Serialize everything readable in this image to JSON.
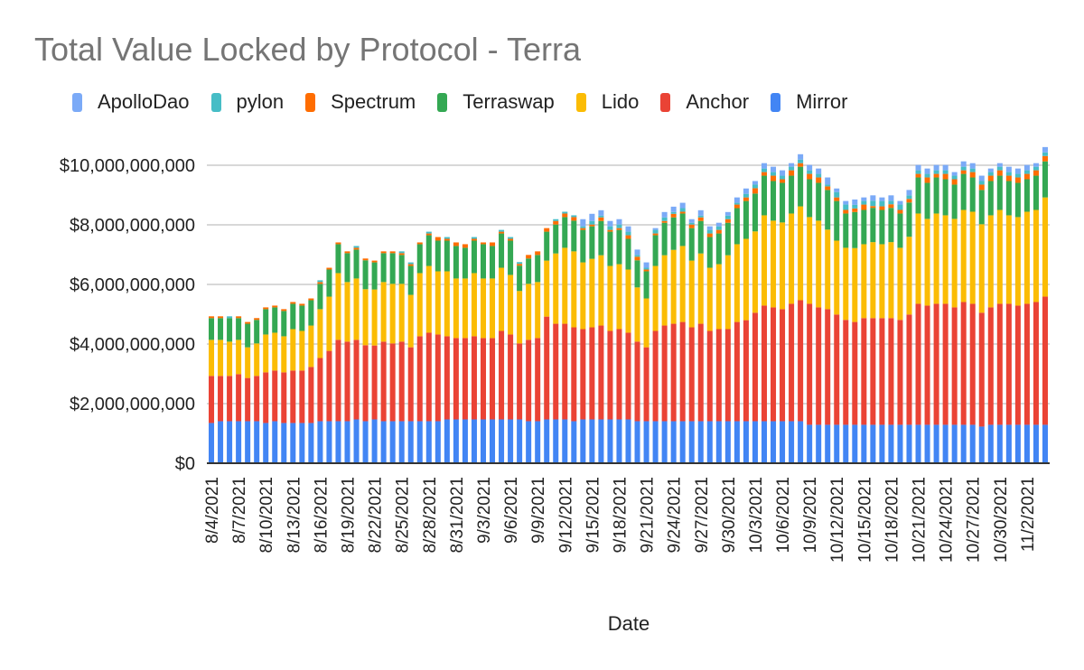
{
  "chart_data": {
    "type": "bar",
    "stacked": true,
    "title": "Total Value Locked by Protocol - Terra",
    "xlabel": "Date",
    "ylabel": "",
    "units": "USD billions",
    "ylim": [
      0,
      10.6
    ],
    "yticks": [
      0,
      2,
      4,
      6,
      8,
      10
    ],
    "ytick_labels": [
      "$0",
      "$2,000,000,000",
      "$4,000,000,000",
      "$6,000,000,000",
      "$8,000,000,000",
      "$10,000,000,000"
    ],
    "grid": true,
    "legend_position": "top",
    "legend_order": [
      "ApolloDao",
      "pylon",
      "Spectrum",
      "Terraswap",
      "Lido",
      "Anchor",
      "Mirror"
    ],
    "xtick_every": 3,
    "categories": [
      "8/4/2021",
      "8/5/2021",
      "8/6/2021",
      "8/7/2021",
      "8/8/2021",
      "8/9/2021",
      "8/10/2021",
      "8/11/2021",
      "8/12/2021",
      "8/13/2021",
      "8/14/2021",
      "8/15/2021",
      "8/16/2021",
      "8/17/2021",
      "8/18/2021",
      "8/19/2021",
      "8/20/2021",
      "8/21/2021",
      "8/22/2021",
      "8/23/2021",
      "8/24/2021",
      "8/25/2021",
      "8/26/2021",
      "8/27/2021",
      "8/28/2021",
      "8/29/2021",
      "8/30/2021",
      "8/31/2021",
      "9/1/2021",
      "9/2/2021",
      "9/3/2021",
      "9/4/2021",
      "9/5/2021",
      "9/6/2021",
      "9/7/2021",
      "9/8/2021",
      "9/9/2021",
      "9/10/2021",
      "9/11/2021",
      "9/12/2021",
      "9/13/2021",
      "9/14/2021",
      "9/15/2021",
      "9/16/2021",
      "9/17/2021",
      "9/18/2021",
      "9/19/2021",
      "9/20/2021",
      "9/21/2021",
      "9/22/2021",
      "9/23/2021",
      "9/24/2021",
      "9/25/2021",
      "9/26/2021",
      "9/27/2021",
      "9/28/2021",
      "9/29/2021",
      "9/30/2021",
      "10/1/2021",
      "10/2/2021",
      "10/3/2021",
      "10/4/2021",
      "10/5/2021",
      "10/6/2021",
      "10/7/2021",
      "10/8/2021",
      "10/9/2021",
      "10/10/2021",
      "10/11/2021",
      "10/12/2021",
      "10/13/2021",
      "10/14/2021",
      "10/15/2021",
      "10/16/2021",
      "10/17/2021",
      "10/18/2021",
      "10/19/2021",
      "10/20/2021",
      "10/21/2021",
      "10/22/2021",
      "10/23/2021",
      "10/24/2021",
      "10/25/2021",
      "10/26/2021",
      "10/27/2021",
      "10/28/2021",
      "10/29/2021",
      "10/30/2021",
      "10/31/2021",
      "11/1/2021",
      "11/2/2021",
      "11/3/2021",
      "11/4/2021"
    ],
    "series": [
      {
        "name": "Mirror",
        "color": "#4285f4",
        "values": [
          1.35,
          1.41,
          1.41,
          1.41,
          1.41,
          1.41,
          1.35,
          1.41,
          1.35,
          1.35,
          1.35,
          1.35,
          1.41,
          1.41,
          1.41,
          1.41,
          1.47,
          1.41,
          1.47,
          1.41,
          1.41,
          1.41,
          1.41,
          1.41,
          1.41,
          1.41,
          1.47,
          1.47,
          1.47,
          1.47,
          1.47,
          1.47,
          1.47,
          1.47,
          1.47,
          1.41,
          1.41,
          1.47,
          1.47,
          1.47,
          1.41,
          1.47,
          1.47,
          1.47,
          1.47,
          1.47,
          1.47,
          1.41,
          1.41,
          1.41,
          1.41,
          1.41,
          1.41,
          1.41,
          1.41,
          1.41,
          1.41,
          1.41,
          1.41,
          1.41,
          1.41,
          1.41,
          1.41,
          1.41,
          1.41,
          1.41,
          1.29,
          1.29,
          1.29,
          1.29,
          1.29,
          1.29,
          1.29,
          1.29,
          1.29,
          1.29,
          1.29,
          1.29,
          1.29,
          1.29,
          1.29,
          1.29,
          1.29,
          1.29,
          1.29,
          1.23,
          1.29,
          1.29,
          1.29,
          1.29,
          1.29,
          1.29,
          1.29
        ]
      },
      {
        "name": "Anchor",
        "color": "#ea4335",
        "values": [
          1.58,
          1.52,
          1.52,
          1.58,
          1.45,
          1.52,
          1.7,
          1.7,
          1.7,
          1.76,
          1.76,
          1.88,
          2.12,
          2.36,
          2.73,
          2.67,
          2.67,
          2.55,
          2.48,
          2.67,
          2.61,
          2.67,
          2.48,
          2.85,
          2.97,
          2.91,
          2.79,
          2.73,
          2.73,
          2.79,
          2.73,
          2.73,
          2.97,
          2.85,
          2.55,
          2.73,
          2.79,
          3.45,
          3.21,
          3.21,
          3.15,
          3.03,
          3.09,
          3.15,
          2.97,
          3.03,
          2.91,
          2.67,
          2.48,
          3.03,
          3.21,
          3.27,
          3.33,
          3.15,
          3.27,
          3.03,
          3.09,
          3.09,
          3.33,
          3.39,
          3.64,
          3.88,
          3.82,
          3.76,
          3.94,
          4.06,
          4.06,
          3.94,
          3.88,
          3.7,
          3.52,
          3.45,
          3.58,
          3.58,
          3.58,
          3.58,
          3.52,
          3.7,
          4.06,
          4.0,
          4.06,
          4.06,
          3.94,
          4.12,
          4.06,
          3.82,
          3.94,
          4.06,
          4.06,
          4.0,
          4.06,
          4.12,
          4.3
        ]
      },
      {
        "name": "Lido",
        "color": "#fbbc04",
        "values": [
          1.21,
          1.21,
          1.15,
          1.15,
          1.03,
          1.09,
          1.27,
          1.27,
          1.21,
          1.39,
          1.33,
          1.39,
          1.64,
          1.82,
          2.24,
          2.0,
          2.06,
          1.88,
          1.88,
          2.0,
          2.0,
          1.94,
          1.76,
          2.12,
          2.24,
          2.12,
          2.18,
          2.0,
          2.0,
          2.12,
          2.0,
          2.0,
          2.12,
          2.0,
          1.76,
          1.88,
          1.88,
          1.88,
          2.36,
          2.55,
          2.55,
          2.24,
          2.3,
          2.36,
          2.18,
          2.18,
          2.12,
          1.82,
          1.64,
          2.18,
          2.36,
          2.48,
          2.55,
          2.24,
          2.36,
          2.12,
          2.18,
          2.48,
          2.61,
          2.73,
          2.73,
          3.03,
          2.91,
          2.91,
          3.03,
          3.15,
          2.91,
          2.91,
          2.67,
          2.48,
          2.42,
          2.48,
          2.48,
          2.55,
          2.48,
          2.55,
          2.42,
          2.61,
          3.03,
          2.91,
          3.03,
          2.97,
          2.97,
          3.09,
          3.09,
          2.97,
          3.09,
          3.15,
          2.97,
          2.97,
          3.09,
          3.09,
          3.33
        ]
      },
      {
        "name": "Terraswap",
        "color": "#34a853",
        "values": [
          0.73,
          0.73,
          0.79,
          0.73,
          0.79,
          0.79,
          0.85,
          0.85,
          0.85,
          0.85,
          0.85,
          0.85,
          0.85,
          0.91,
          0.97,
          0.97,
          0.97,
          0.97,
          0.91,
          0.97,
          1.03,
          0.97,
          0.97,
          0.97,
          1.03,
          1.03,
          1.03,
          1.09,
          1.03,
          1.09,
          1.15,
          1.09,
          1.15,
          1.15,
          0.85,
          0.85,
          0.91,
          0.97,
          0.97,
          1.03,
          1.03,
          1.09,
          1.09,
          1.15,
          1.15,
          1.15,
          1.03,
          0.91,
          0.91,
          1.03,
          1.09,
          1.09,
          1.09,
          1.09,
          1.09,
          1.03,
          1.03,
          1.09,
          1.21,
          1.27,
          1.27,
          1.33,
          1.33,
          1.33,
          1.27,
          1.33,
          1.27,
          1.27,
          1.33,
          1.33,
          1.15,
          1.21,
          1.15,
          1.15,
          1.15,
          1.15,
          1.15,
          1.15,
          1.21,
          1.21,
          1.21,
          1.21,
          1.15,
          1.21,
          1.15,
          1.15,
          1.15,
          1.15,
          1.15,
          1.15,
          1.09,
          1.15,
          1.21
        ]
      },
      {
        "name": "Spectrum",
        "color": "#ff6d01",
        "values": [
          0.06,
          0.06,
          0,
          0.06,
          0.06,
          0.06,
          0.06,
          0.06,
          0.06,
          0.06,
          0.06,
          0.06,
          0.06,
          0.06,
          0.06,
          0.06,
          0.06,
          0.06,
          0.06,
          0.06,
          0.06,
          0.06,
          0.06,
          0.06,
          0.06,
          0.12,
          0.06,
          0.12,
          0.12,
          0.06,
          0.06,
          0.12,
          0.06,
          0.06,
          0.06,
          0.12,
          0.12,
          0.12,
          0.12,
          0.12,
          0.12,
          0.06,
          0.06,
          0.12,
          0.06,
          0.06,
          0.12,
          0.12,
          0.06,
          0.06,
          0.06,
          0.12,
          0.06,
          0.12,
          0.12,
          0.12,
          0.12,
          0.12,
          0.12,
          0.12,
          0.18,
          0.12,
          0.18,
          0.12,
          0.18,
          0.12,
          0.18,
          0.18,
          0.12,
          0.12,
          0.12,
          0.12,
          0.18,
          0.06,
          0.12,
          0.12,
          0.12,
          0.12,
          0.12,
          0.18,
          0.12,
          0.18,
          0.18,
          0.12,
          0.18,
          0.18,
          0.18,
          0.18,
          0.18,
          0.18,
          0.18,
          0.18,
          0.18
        ]
      },
      {
        "name": "pylon",
        "color": "#46bdc6",
        "values": [
          0,
          0,
          0.06,
          0,
          0,
          0,
          0,
          0,
          0,
          0,
          0,
          0,
          0.06,
          0,
          0,
          0,
          0.06,
          0,
          0,
          0,
          0,
          0.06,
          0.06,
          0,
          0.06,
          0,
          0.06,
          0,
          0,
          0.06,
          0,
          0,
          0.06,
          0.06,
          0.06,
          0,
          0,
          0,
          0.06,
          0.06,
          0.06,
          0.06,
          0.12,
          0.06,
          0.12,
          0.12,
          0.12,
          0.06,
          0.06,
          0.12,
          0.12,
          0.06,
          0.12,
          0.06,
          0.06,
          0.12,
          0.12,
          0.12,
          0.06,
          0.12,
          0.12,
          0.12,
          0.12,
          0.12,
          0.12,
          0.12,
          0.12,
          0.12,
          0.06,
          0.18,
          0.18,
          0.12,
          0.12,
          0.18,
          0.18,
          0.12,
          0.18,
          0.12,
          0.12,
          0.12,
          0.12,
          0.12,
          0.12,
          0.12,
          0.12,
          0.12,
          0.12,
          0.12,
          0.12,
          0.12,
          0.12,
          0.12,
          0.12
        ]
      },
      {
        "name": "ApolloDao",
        "color": "#7baaf7",
        "values": [
          0,
          0,
          0,
          0,
          0,
          0,
          0,
          0,
          0,
          0,
          0,
          0,
          0,
          0,
          0,
          0,
          0,
          0,
          0,
          0,
          0,
          0,
          0,
          0,
          0,
          0,
          0,
          0,
          0,
          0,
          0,
          0,
          0,
          0,
          0,
          0,
          0,
          0,
          0,
          0,
          0,
          0.24,
          0.24,
          0.18,
          0.18,
          0.18,
          0.18,
          0.18,
          0.18,
          0.06,
          0.18,
          0.18,
          0.18,
          0.12,
          0.18,
          0.12,
          0.12,
          0.12,
          0.18,
          0.18,
          0.12,
          0.18,
          0.18,
          0.18,
          0.12,
          0.18,
          0.18,
          0.18,
          0.24,
          0.12,
          0.12,
          0.18,
          0.12,
          0.18,
          0.12,
          0.18,
          0.12,
          0.18,
          0.18,
          0.18,
          0.18,
          0.18,
          0.12,
          0.18,
          0.18,
          0.18,
          0.12,
          0.12,
          0.18,
          0.18,
          0.18,
          0.12,
          0.18
        ]
      }
    ]
  }
}
